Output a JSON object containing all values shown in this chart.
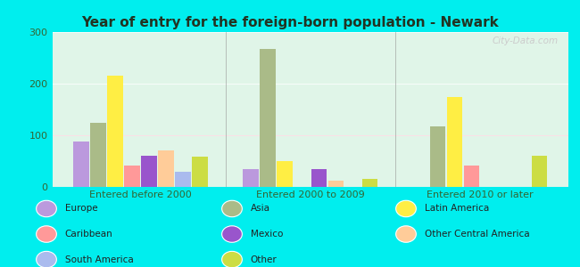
{
  "title": "Year of entry for the foreign-born population - Newark",
  "categories": [
    "Entered before 2000",
    "Entered 2000 to 2009",
    "Entered 2010 or later"
  ],
  "bar_order": [
    "Europe",
    "Asia",
    "Latin America",
    "Caribbean",
    "Mexico",
    "Other Central America",
    "South America",
    "Other"
  ],
  "colors": {
    "Europe": "#bb99dd",
    "Caribbean": "#ff9999",
    "South America": "#aabbee",
    "Asia": "#aabb88",
    "Mexico": "#9955cc",
    "Other": "#ccdd44",
    "Latin America": "#ffee44",
    "Other Central America": "#ffcc99"
  },
  "values": {
    "Entered before 2000": {
      "Europe": 88,
      "Caribbean": 42,
      "South America": 30,
      "Asia": 125,
      "Mexico": 60,
      "Other": 58,
      "Latin America": 215,
      "Other Central America": 70
    },
    "Entered 2000 to 2009": {
      "Europe": 35,
      "Caribbean": 0,
      "South America": 0,
      "Asia": 268,
      "Mexico": 35,
      "Other": 15,
      "Latin America": 50,
      "Other Central America": 12
    },
    "Entered 2010 or later": {
      "Europe": 0,
      "Caribbean": 42,
      "South America": 0,
      "Asia": 118,
      "Mexico": 0,
      "Other": 60,
      "Latin America": 175,
      "Other Central America": 0
    }
  },
  "ylim": [
    0,
    300
  ],
  "yticks": [
    0,
    100,
    200,
    300
  ],
  "bg_color": "#e0f5e8",
  "outer_bg": "#00eeee",
  "title_color": "#223322",
  "watermark": "City-Data.com",
  "tick_color": "#336633",
  "legend_layout": [
    [
      [
        "Europe",
        "#bb99dd"
      ],
      [
        "Asia",
        "#aabb88"
      ],
      [
        "Latin America",
        "#ffee44"
      ]
    ],
    [
      [
        "Caribbean",
        "#ff9999"
      ],
      [
        "Mexico",
        "#9955cc"
      ],
      [
        "Other Central America",
        "#ffcc99"
      ]
    ],
    [
      [
        "South America",
        "#aabbee"
      ],
      [
        "Other",
        "#ccdd44"
      ],
      null
    ]
  ]
}
